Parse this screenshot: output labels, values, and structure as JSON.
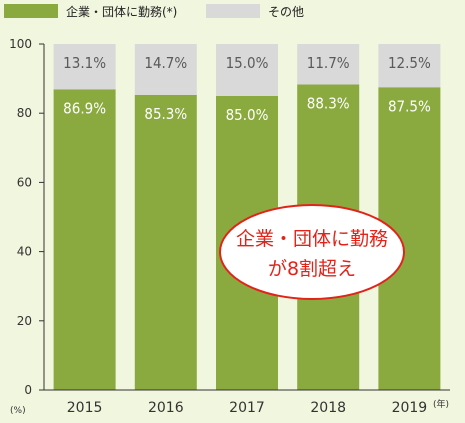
{
  "chart_data": {
    "type": "bar",
    "stacked": true,
    "categories": [
      "2015",
      "2016",
      "2017",
      "2018",
      "2019"
    ],
    "series": [
      {
        "name": "企業・団体に勤務(*)",
        "values": [
          86.9,
          85.3,
          85.0,
          88.3,
          87.5
        ],
        "labels": [
          "86.9%",
          "85.3%",
          "85.0%",
          "88.3%",
          "87.5%"
        ],
        "color": "#8aaa3f"
      },
      {
        "name": "その他",
        "values": [
          13.1,
          14.7,
          15.0,
          11.7,
          12.5
        ],
        "labels": [
          "13.1%",
          "14.7%",
          "15.0%",
          "11.7%",
          "12.5%"
        ],
        "color": "#d9d9d9"
      }
    ],
    "ylim": [
      0,
      100
    ],
    "yticks": [
      "0",
      "20",
      "40",
      "60",
      "80",
      "100"
    ],
    "ytick_values": [
      0,
      20,
      40,
      60,
      80,
      100
    ],
    "y_unit": "(%)",
    "x_unit": "(年)",
    "legend_position": "top",
    "callout": {
      "lines": [
        "企業・団体に勤務",
        "が8割超え"
      ]
    }
  }
}
